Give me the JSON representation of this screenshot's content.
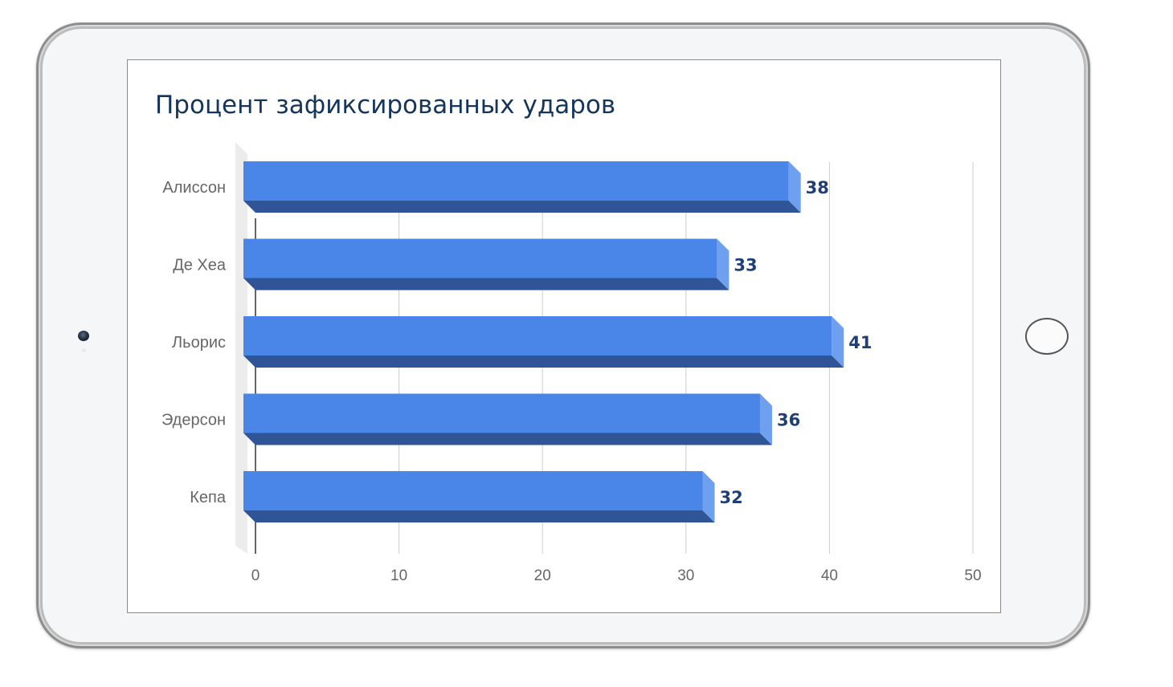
{
  "chart_data": {
    "type": "bar",
    "orientation": "horizontal",
    "style": "3d",
    "title": "Процент зафиксированных ударов",
    "categories": [
      "Алиссон",
      "Де Хеа",
      "Льорис",
      "Эдерсон",
      "Кепа"
    ],
    "values": [
      38,
      33,
      41,
      36,
      32
    ],
    "xlim": [
      0,
      50
    ],
    "xticks": [
      0,
      10,
      20,
      30,
      40,
      50
    ],
    "grid": "vertical",
    "legend": "none",
    "colors": {
      "bar_front": "#4a86e8",
      "bar_side": "#6fa0f0",
      "bar_bottom": "#2f5597",
      "value_label": "#1f3f75",
      "title": "#15355a"
    }
  },
  "device": {
    "type": "tablet",
    "color": "#f5f6f7"
  }
}
